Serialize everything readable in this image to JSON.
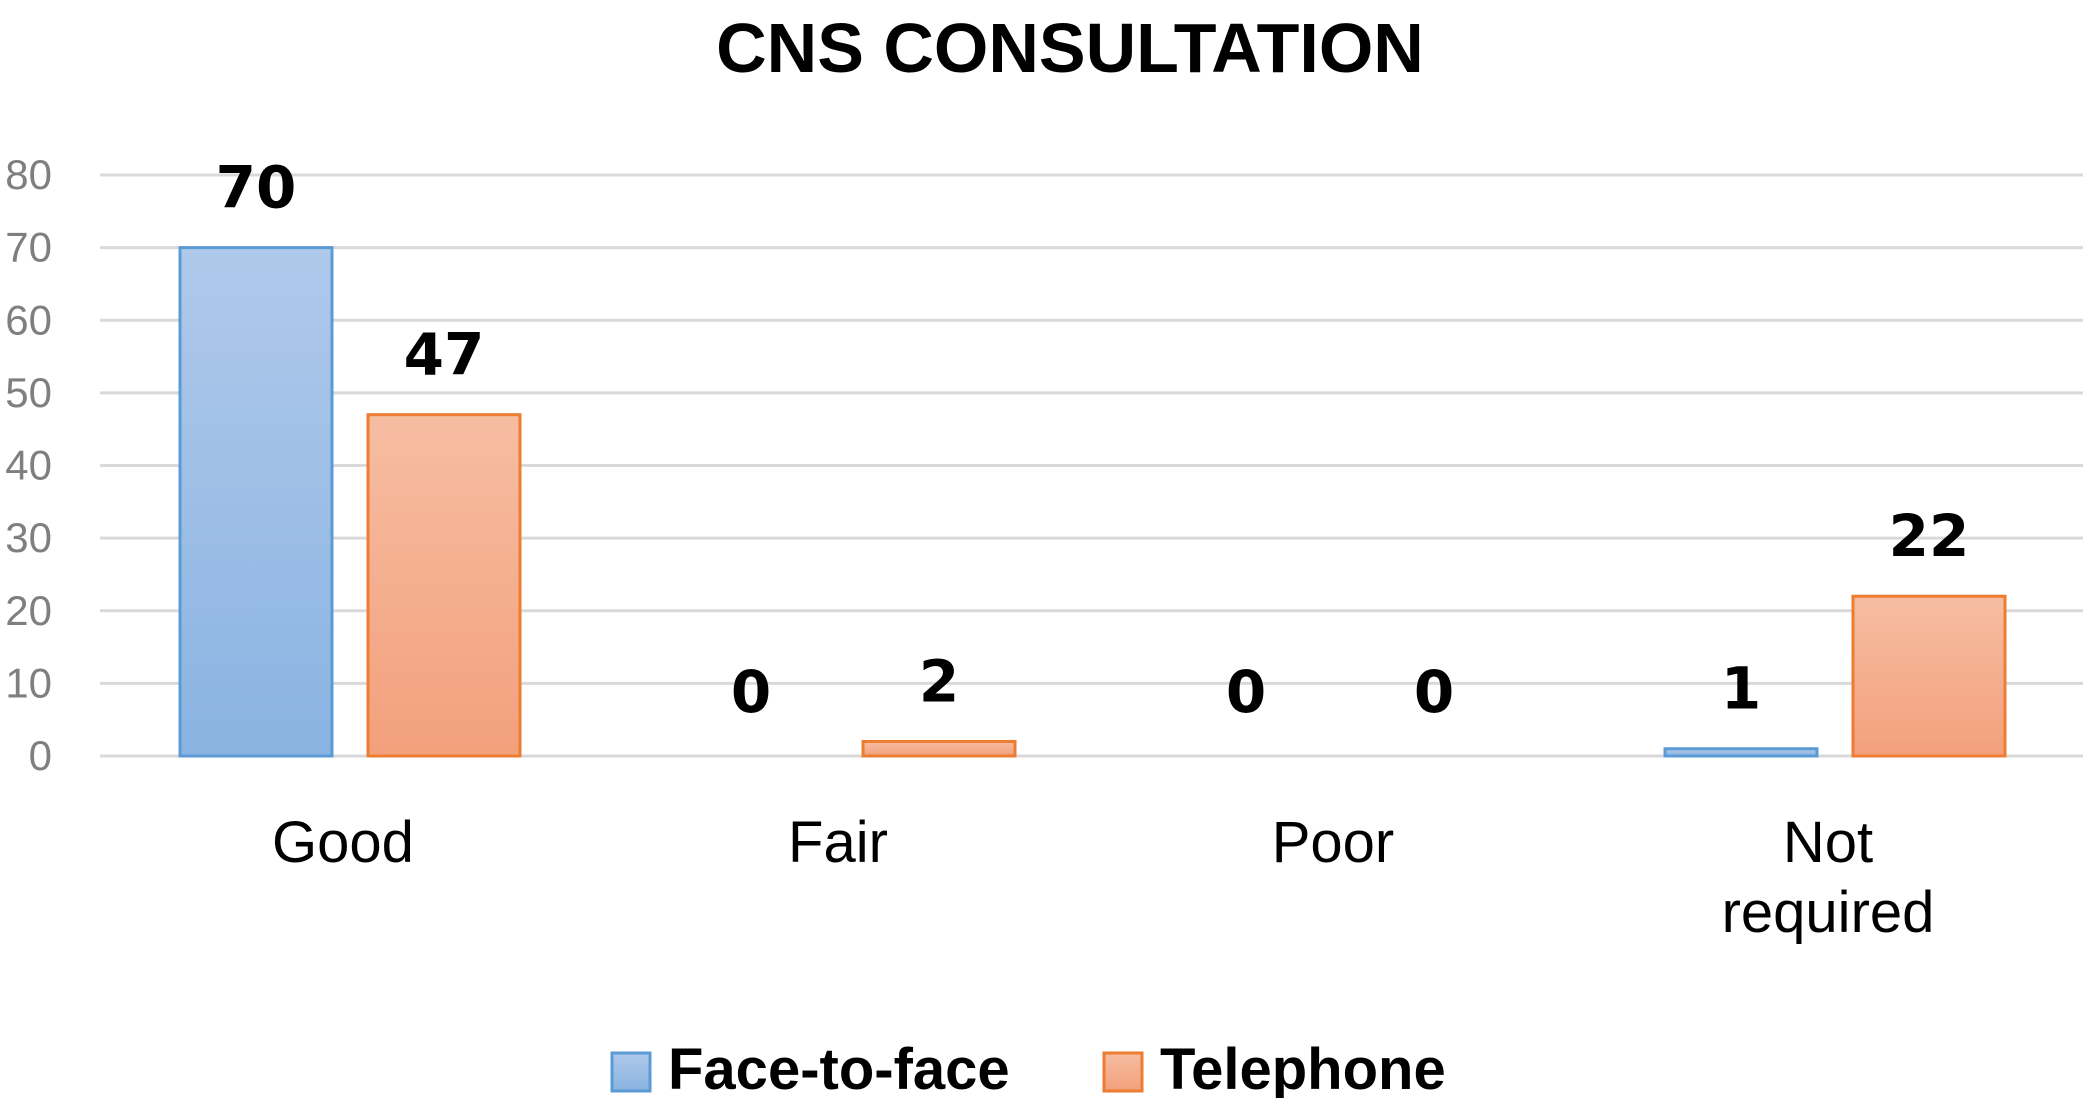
{
  "chart_data": {
    "type": "bar",
    "title": "CNS CONSULTATION",
    "xlabel": "",
    "ylabel": "",
    "categories": [
      "Good",
      "Fair",
      "Poor",
      "Not required"
    ],
    "series": [
      {
        "name": "Face-to-face",
        "values": [
          70,
          0,
          0,
          1
        ],
        "color": "#5b9bd5"
      },
      {
        "name": "Telephone",
        "values": [
          47,
          2,
          0,
          22
        ],
        "color": "#ed7d31"
      }
    ],
    "ylim": [
      0,
      80
    ],
    "yticks": [
      0,
      10,
      20,
      30,
      40,
      50,
      60,
      70,
      80
    ],
    "grid": true,
    "legend": "bottom",
    "data_labels": true
  }
}
